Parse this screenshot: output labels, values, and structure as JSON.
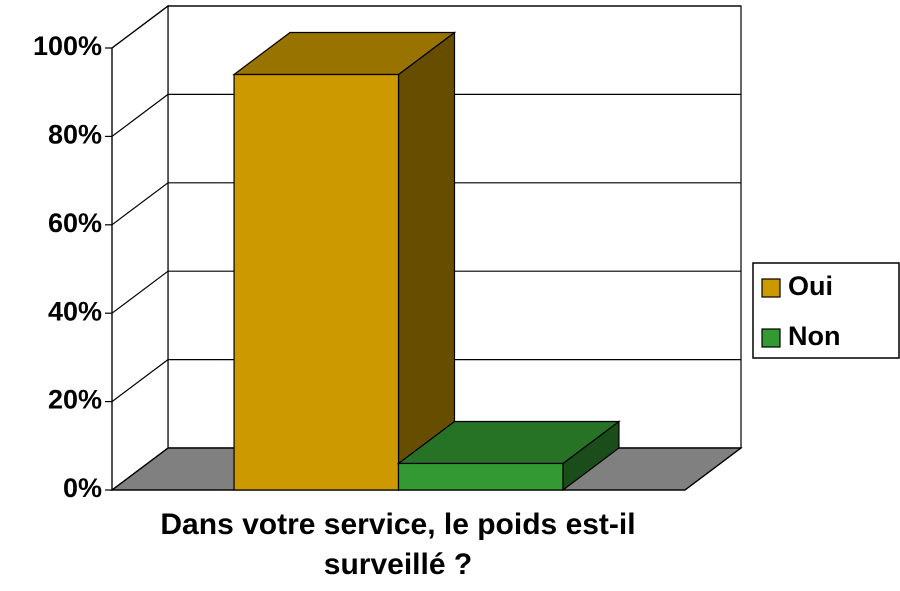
{
  "chart_data": {
    "type": "bar3d",
    "categories": [
      "Dans votre service, le poids est-il surveillé ?"
    ],
    "series": [
      {
        "name": "Oui",
        "color": "#cc9900",
        "values": [
          94
        ]
      },
      {
        "name": "Non",
        "color": "#339933",
        "values": [
          6
        ]
      }
    ],
    "ylim": [
      0,
      100
    ],
    "yticks": [
      {
        "value": 0,
        "label": "0%"
      },
      {
        "value": 20,
        "label": "20%"
      },
      {
        "value": 40,
        "label": "40%"
      },
      {
        "value": 60,
        "label": "60%"
      },
      {
        "value": 80,
        "label": "80%"
      },
      {
        "value": 100,
        "label": "100%"
      }
    ],
    "grid": true,
    "legend": "right"
  }
}
